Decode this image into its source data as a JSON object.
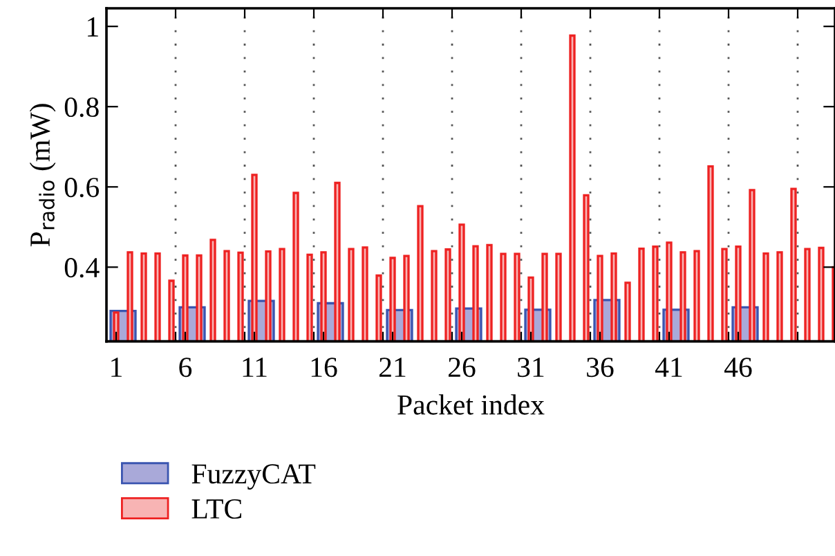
{
  "chart_data": {
    "type": "bar",
    "xlabel": "Packet index",
    "ylabel": "P$_{radio}$ (mW)",
    "series": [
      {
        "name": "FuzzyCAT",
        "color": "#a9a9d9",
        "x": [
          1.5,
          6.5,
          11.5,
          16.5,
          21.5,
          26.5,
          31.5,
          36.5,
          41.5,
          46.5
        ],
        "values": [
          0.291,
          0.3,
          0.316,
          0.31,
          0.293,
          0.297,
          0.294,
          0.318,
          0.294,
          0.3
        ]
      },
      {
        "name": "LTC",
        "color": "#f8b4b4",
        "x": [
          1,
          2,
          3,
          4,
          5,
          6,
          7,
          8,
          9,
          10,
          11,
          12,
          13,
          14,
          15,
          16,
          17,
          18,
          19,
          20,
          21,
          22,
          23,
          24,
          25,
          26,
          27,
          28,
          29,
          30,
          31,
          32,
          33,
          34,
          35,
          36,
          37,
          38,
          39,
          40,
          41,
          42,
          43,
          44,
          45,
          46,
          47,
          48,
          49,
          50,
          51,
          52,
          53
        ],
        "values": [
          0.287,
          0.437,
          0.434,
          0.434,
          0.366,
          0.429,
          0.429,
          0.468,
          0.44,
          0.436,
          0.63,
          0.439,
          0.445,
          0.585,
          0.431,
          0.437,
          0.61,
          0.445,
          0.449,
          0.379,
          0.423,
          0.428,
          0.552,
          0.44,
          0.444,
          0.506,
          0.452,
          0.455,
          0.433,
          0.433,
          0.374,
          0.433,
          0.433,
          0.977,
          0.579,
          0.428,
          0.434,
          0.361,
          0.446,
          0.451,
          0.461,
          0.437,
          0.44,
          0.651,
          0.445,
          0.451,
          0.592,
          0.434,
          0.437,
          0.595,
          0.445,
          0.448,
          0.4
        ]
      }
    ],
    "xlim": [
      0.3,
      53
    ],
    "ylim": [
      0.215,
      1.045
    ],
    "xticks": [
      1,
      6,
      11,
      16,
      21,
      26,
      31,
      36,
      41,
      46,
      {
        "value": 5.3,
        "label": null
      },
      {
        "value": 10.3,
        "label": null
      },
      {
        "value": 15.3,
        "label": null
      },
      {
        "value": 20.3,
        "label": null
      },
      {
        "value": 25.3,
        "label": null
      },
      {
        "value": 30.3,
        "label": null
      },
      {
        "value": 35.3,
        "label": null
      },
      {
        "value": 40.3,
        "label": null
      },
      {
        "value": 45.3,
        "label": null
      },
      {
        "value": 50.3,
        "label": null
      }
    ],
    "yticks": [
      0.4,
      0.6,
      0.8,
      {
        "value": 1,
        "label": "1"
      }
    ],
    "grid": "x",
    "legend": "bottom left"
  }
}
